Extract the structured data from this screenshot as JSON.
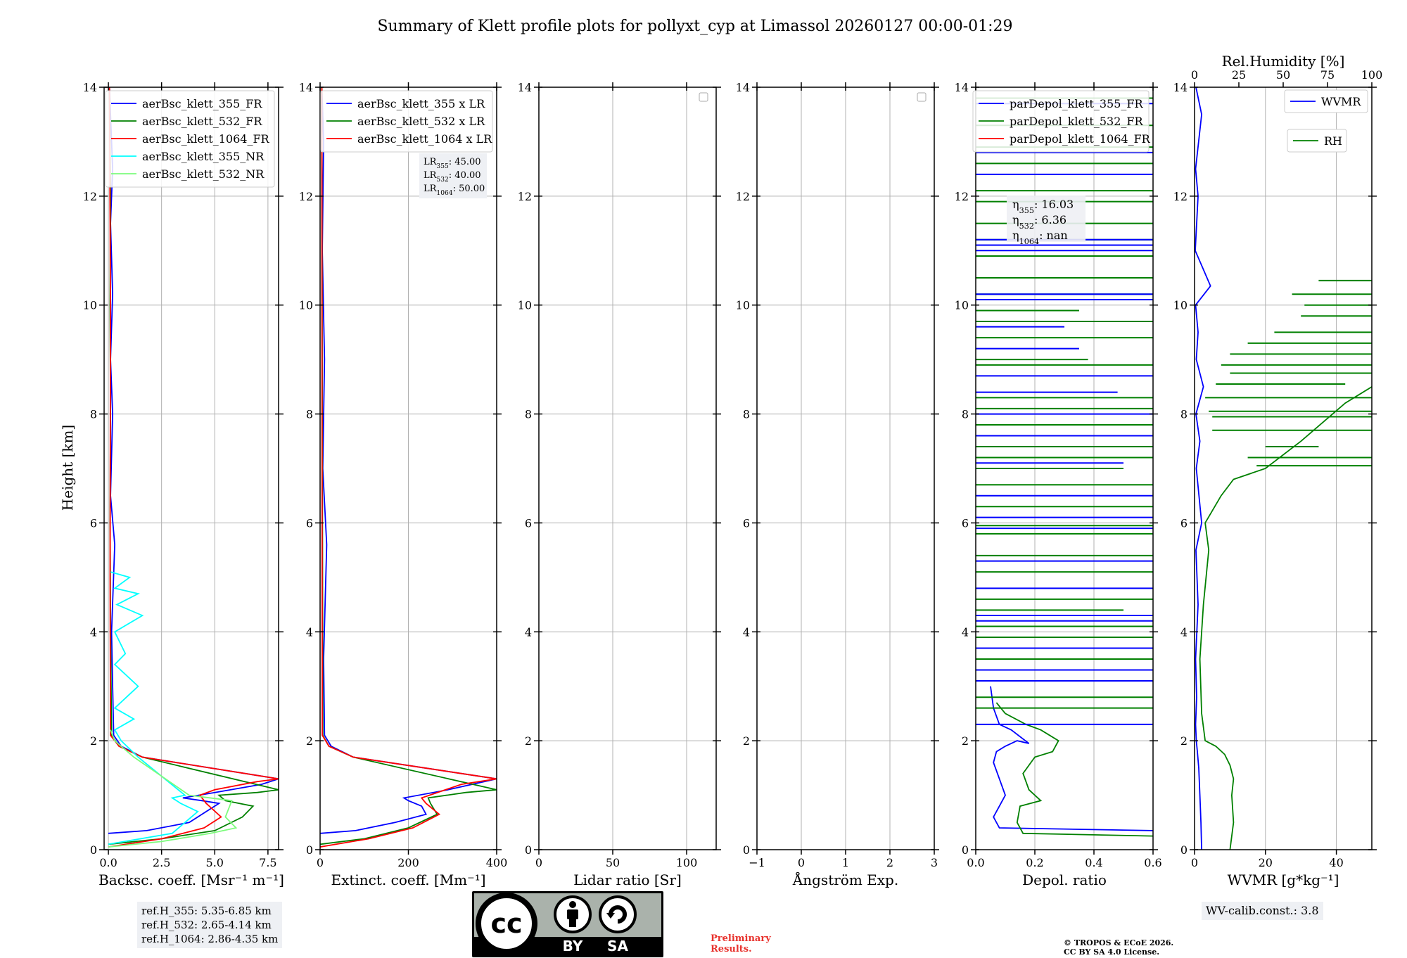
{
  "title": "Summary of Klett profile plots for pollyxt_cyp at Limassol 20260127 00:00-01:29",
  "height_label": "Height [km]",
  "colors": {
    "blue": "#0000ff",
    "green": "#008000",
    "red": "#ff0000",
    "cyan": "#00ffff",
    "light_green": "#7cfc7c",
    "grid": "#b0b0b0"
  },
  "chart_data": [
    {
      "id": "backscatter",
      "type": "line",
      "xlabel": "Backsc. coeff. [Msr⁻¹ m⁻¹]",
      "ylabel": "Height [km]",
      "xlim": [
        -0.2,
        8.0
      ],
      "ylim": [
        0,
        14
      ],
      "xticks": [
        0.0,
        2.5,
        5.0,
        7.5
      ],
      "xtick_labels": [
        "0.0",
        "2.5",
        "5.0",
        "7.5"
      ],
      "yticks": [
        0,
        2,
        4,
        6,
        8,
        10,
        12,
        14
      ],
      "ytick_labels": [
        "0",
        "2",
        "4",
        "6",
        "8",
        "10",
        "12",
        "14"
      ],
      "legend": [
        "aerBsc_klett_355_FR",
        "aerBsc_klett_532_FR",
        "aerBsc_klett_1064_FR",
        "aerBsc_klett_355_NR",
        "aerBsc_klett_532_NR"
      ],
      "legend_colors": [
        "#0000ff",
        "#008000",
        "#ff0000",
        "#00ffff",
        "#7cfc7c"
      ],
      "legend_position": "top-right",
      "series": [
        {
          "name": "aerBsc_klett_355_FR",
          "color": "#0000ff",
          "x": [
            0.0,
            1.8,
            3.8,
            4.6,
            5.2,
            4.4,
            3.5,
            5.0,
            7.2,
            8.0,
            1.6,
            0.6,
            0.25,
            0.2,
            0.15,
            0.3,
            0.1,
            0.2,
            0.1,
            0.2,
            0.1,
            0.2,
            0.1,
            0.05
          ],
          "y": [
            0.3,
            0.35,
            0.5,
            0.7,
            0.85,
            0.9,
            0.95,
            1.05,
            1.2,
            1.3,
            1.7,
            1.9,
            2.1,
            3.0,
            4.0,
            5.6,
            6.5,
            8.0,
            9.0,
            10.2,
            11.5,
            12.5,
            13.5,
            14.0
          ]
        },
        {
          "name": "aerBsc_klett_532_FR",
          "color": "#008000",
          "x": [
            0.0,
            2.5,
            5.0,
            6.3,
            6.8,
            5.5,
            5.2,
            7.0,
            8.0,
            1.6,
            0.5,
            0.15,
            0.1,
            0.08,
            0.1,
            0.08,
            0.1,
            0.05
          ],
          "y": [
            0.1,
            0.2,
            0.35,
            0.6,
            0.8,
            0.9,
            1.0,
            1.05,
            1.1,
            1.7,
            1.9,
            2.1,
            4.0,
            6.0,
            8.0,
            10.0,
            12.0,
            14.0
          ]
        },
        {
          "name": "aerBsc_klett_1064_FR",
          "color": "#ff0000",
          "x": [
            0.0,
            2.5,
            4.5,
            5.3,
            4.6,
            4.3,
            5.0,
            7.0,
            8.0,
            1.6,
            0.5,
            0.1,
            0.08,
            0.1,
            0.05
          ],
          "y": [
            0.05,
            0.2,
            0.4,
            0.6,
            0.85,
            1.0,
            1.1,
            1.25,
            1.3,
            1.7,
            1.9,
            2.1,
            5.0,
            10.0,
            14.0
          ]
        },
        {
          "name": "aerBsc_klett_355_NR",
          "color": "#00ffff",
          "x": [
            0.0,
            3.0,
            3.6,
            4.2,
            3.4,
            3.0,
            3.6,
            1.4,
            0.6,
            0.3,
            1.2,
            0.3,
            1.4,
            0.3,
            0.8,
            0.3,
            1.6,
            0.4,
            1.4,
            0.3,
            1.0,
            0.1
          ],
          "y": [
            0.1,
            0.3,
            0.5,
            0.7,
            0.85,
            0.95,
            1.0,
            1.7,
            2.0,
            2.2,
            2.4,
            2.6,
            3.0,
            3.4,
            3.6,
            4.0,
            4.3,
            4.5,
            4.7,
            4.8,
            5.0,
            5.1
          ]
        },
        {
          "name": "aerBsc_klett_532_NR",
          "color": "#7cfc7c",
          "x": [
            0.0,
            2.5,
            4.8,
            6.0,
            5.5,
            5.8,
            3.8,
            1.2,
            0.3,
            0.1
          ],
          "y": [
            0.05,
            0.15,
            0.3,
            0.4,
            0.6,
            0.9,
            1.0,
            1.7,
            2.0,
            2.2
          ]
        }
      ]
    },
    {
      "id": "extinction",
      "type": "line",
      "xlabel": "Extinct. coeff. [Mm⁻¹]",
      "ylabel": "",
      "xlim": [
        0,
        400
      ],
      "ylim": [
        0,
        14
      ],
      "xticks": [
        0,
        200,
        400
      ],
      "xtick_labels": [
        "0",
        "200",
        "400"
      ],
      "yticks": [
        0,
        2,
        4,
        6,
        8,
        10,
        12,
        14
      ],
      "ytick_labels": [
        "0",
        "2",
        "4",
        "6",
        "8",
        "10",
        "12",
        "14"
      ],
      "legend": [
        "aerBsc_klett_355 x LR",
        "aerBsc_klett_532 x LR",
        "aerBsc_klett_1064 x LR"
      ],
      "legend_colors": [
        "#0000ff",
        "#008000",
        "#ff0000"
      ],
      "legend_position": "top-right",
      "annotation": {
        "lr355_label": "LR",
        "lr355_sub": "355",
        "lr355_value": ": 45.00",
        "lr532_label": "LR",
        "lr532_sub": "532",
        "lr532_value": ": 40.00",
        "lr1064_label": "LR",
        "lr1064_sub": "1064",
        "lr1064_value": ": 50.00"
      },
      "series": [
        {
          "name": "aerBsc_klett_355 x LR",
          "color": "#0000ff",
          "x": [
            0,
            80,
            170,
            240,
            230,
            200,
            190,
            290,
            400,
            75,
            25,
            10,
            8,
            15,
            6,
            10,
            5,
            8,
            4
          ],
          "y": [
            0.3,
            0.35,
            0.5,
            0.65,
            0.8,
            0.9,
            0.95,
            1.1,
            1.3,
            1.7,
            1.9,
            2.1,
            3.5,
            5.6,
            7.0,
            9.0,
            11.0,
            13.0,
            14.0
          ]
        },
        {
          "name": "aerBsc_klett_532 x LR",
          "color": "#008000",
          "x": [
            0,
            100,
            200,
            265,
            250,
            245,
            330,
            400,
            75,
            20,
            6,
            5,
            4
          ],
          "y": [
            0.1,
            0.2,
            0.4,
            0.65,
            0.85,
            0.95,
            1.05,
            1.1,
            1.7,
            1.9,
            2.1,
            8.0,
            14.0
          ]
        },
        {
          "name": "aerBsc_klett_1064 x LR",
          "color": "#ff0000",
          "x": [
            0,
            110,
            210,
            270,
            240,
            230,
            320,
            400,
            75,
            20,
            5,
            4
          ],
          "y": [
            0.05,
            0.2,
            0.4,
            0.65,
            0.85,
            0.95,
            1.2,
            1.3,
            1.7,
            1.9,
            2.1,
            14.0
          ]
        }
      ]
    },
    {
      "id": "lidar_ratio",
      "type": "line",
      "xlabel": "Lidar ratio [Sr]",
      "ylabel": "",
      "xlim": [
        0,
        120
      ],
      "ylim": [
        0,
        14
      ],
      "xticks": [
        0,
        50,
        100
      ],
      "xtick_labels": [
        "0",
        "50",
        "100"
      ],
      "yticks": [
        0,
        2,
        4,
        6,
        8,
        10,
        12,
        14
      ],
      "ytick_labels": [
        "0",
        "2",
        "4",
        "6",
        "8",
        "10",
        "12",
        "14"
      ],
      "legend": [],
      "legend_position": "top-right",
      "series": []
    },
    {
      "id": "angstrom",
      "type": "line",
      "xlabel": "Ångström Exp.",
      "ylabel": "",
      "xlim": [
        -1,
        3
      ],
      "ylim": [
        0,
        14
      ],
      "xticks": [
        -1,
        0,
        1,
        2,
        3
      ],
      "xtick_labels": [
        "−1",
        "0",
        "1",
        "2",
        "3"
      ],
      "yticks": [
        0,
        2,
        4,
        6,
        8,
        10,
        12,
        14
      ],
      "ytick_labels": [
        "0",
        "2",
        "4",
        "6",
        "8",
        "10",
        "12",
        "14"
      ],
      "legend": [],
      "legend_position": "top-right",
      "series": []
    },
    {
      "id": "depolarization",
      "type": "line",
      "xlabel": "Depol. ratio",
      "ylabel": "",
      "xlim": [
        0,
        0.6
      ],
      "ylim": [
        0,
        14
      ],
      "xticks": [
        0.0,
        0.2,
        0.4,
        0.6
      ],
      "xtick_labels": [
        "0.0",
        "0.2",
        "0.4",
        "0.6"
      ],
      "yticks": [
        0,
        2,
        4,
        6,
        8,
        10,
        12,
        14
      ],
      "ytick_labels": [
        "0",
        "2",
        "4",
        "6",
        "8",
        "10",
        "12",
        "14"
      ],
      "legend": [
        "parDepol_klett_355_FR",
        "parDepol_klett_532_FR",
        "parDepol_klett_1064_FR"
      ],
      "legend_colors": [
        "#0000ff",
        "#008000",
        "#ff0000"
      ],
      "legend_position": "top-right",
      "annotation": {
        "eta355_label": "η",
        "eta355_sub": "355",
        "eta355_value": ": 16.03",
        "eta532_label": "η",
        "eta532_sub": "532",
        "eta532_value": ": 6.36",
        "eta1064_label": "η",
        "eta1064_sub": "1064",
        "eta1064_value": ": nan"
      },
      "series": [
        {
          "name": "parDepol_klett_355_FR",
          "color": "#0000ff",
          "x": [
            0.6,
            0.08,
            0.06,
            0.08,
            0.1,
            0.08,
            0.06,
            0.07,
            0.1,
            0.14,
            0.18,
            0.12,
            0.08,
            0.06,
            0.05
          ],
          "y": [
            0.35,
            0.4,
            0.6,
            0.8,
            1.0,
            1.3,
            1.6,
            1.8,
            1.9,
            2.0,
            1.95,
            2.2,
            2.3,
            2.6,
            3.0
          ]
        },
        {
          "name": "parDepol_klett_532_FR",
          "color": "#008000",
          "x": [
            0.6,
            0.16,
            0.14,
            0.15,
            0.22,
            0.18,
            0.16,
            0.2,
            0.26,
            0.28,
            0.22,
            0.17,
            0.1,
            0.07
          ],
          "y": [
            0.25,
            0.3,
            0.5,
            0.8,
            0.9,
            1.1,
            1.4,
            1.7,
            1.8,
            2.0,
            2.2,
            2.3,
            2.5,
            2.7
          ]
        }
      ],
      "spikes": {
        "355_heights": [
          2.3,
          3.1,
          3.3,
          3.7,
          4.2,
          4.3,
          4.8,
          5.3,
          5.9,
          6.1,
          6.5,
          7.1,
          7.6,
          8.0,
          8.4,
          8.7,
          9.2,
          9.6,
          10.1,
          10.2,
          11.0,
          11.1,
          11.2,
          12.4,
          12.8,
          13.7
        ],
        "355_values": [
          0.6,
          0.6,
          0.6,
          0.6,
          0.6,
          0.6,
          0.6,
          0.6,
          0.6,
          0.6,
          0.6,
          0.5,
          0.6,
          0.6,
          0.48,
          0.6,
          0.35,
          0.3,
          0.6,
          0.6,
          0.6,
          0.6,
          0.6,
          0.6,
          0.6,
          0.6
        ],
        "532_heights": [
          2.6,
          2.8,
          3.5,
          3.9,
          4.1,
          4.4,
          4.6,
          5.1,
          5.4,
          5.8,
          5.95,
          6.3,
          6.7,
          7.0,
          7.2,
          7.4,
          7.8,
          8.1,
          8.3,
          8.9,
          9.0,
          9.4,
          9.7,
          9.9,
          10.2,
          10.5,
          10.9,
          11.2,
          11.5,
          11.9,
          12.1,
          12.6,
          12.9,
          13.3,
          13.8
        ],
        "532_values": [
          0.6,
          0.6,
          0.6,
          0.6,
          0.6,
          0.5,
          0.6,
          0.6,
          0.6,
          0.6,
          0.6,
          0.6,
          0.6,
          0.5,
          0.6,
          0.6,
          0.6,
          0.6,
          0.6,
          0.6,
          0.38,
          0.6,
          0.6,
          0.35,
          0.6,
          0.6,
          0.6,
          0.6,
          0.6,
          0.6,
          0.6,
          0.6,
          0.6,
          0.6,
          0.6
        ]
      }
    },
    {
      "id": "wvmr",
      "type": "line",
      "xlabel": "WVMR [g*kg⁻¹]",
      "ylabel": "",
      "xlim": [
        0,
        50
      ],
      "ylim": [
        0,
        14
      ],
      "xticks": [
        0,
        20,
        40
      ],
      "xtick_labels": [
        "0",
        "20",
        "40"
      ],
      "yticks": [
        0,
        2,
        4,
        6,
        8,
        10,
        12,
        14
      ],
      "ytick_labels": [
        "0",
        "2",
        "4",
        "6",
        "8",
        "10",
        "12",
        "14"
      ],
      "top_axis": {
        "label": "Rel.Humidity [%]",
        "lim": [
          0,
          100
        ],
        "ticks": [
          0,
          25,
          50,
          75,
          100
        ],
        "tick_labels": [
          "0",
          "25",
          "50",
          "75",
          "100"
        ]
      },
      "legend": [
        "WVMR",
        "RH"
      ],
      "legend_colors": [
        "#0000ff",
        "#008000"
      ],
      "legend_position": "top-right",
      "series": [
        {
          "name": "WVMR",
          "color": "#0000ff",
          "x": [
            2.0,
            1.8,
            1.5,
            1.2,
            0.8,
            0.5,
            0.3,
            0.6,
            0.3,
            1.0,
            0.4,
            2.0,
            0.5,
            1.5,
            0.4,
            2.5,
            0.5,
            1.0,
            0.3,
            4.5,
            0.2,
            1.0,
            0.3,
            2.0,
            0.4
          ],
          "y": [
            0.0,
            0.5,
            1.0,
            1.5,
            1.8,
            2.0,
            2.3,
            2.8,
            3.5,
            4.5,
            5.5,
            6.0,
            7.0,
            7.5,
            8.0,
            8.5,
            9.0,
            9.5,
            10.0,
            10.35,
            11.0,
            12.0,
            12.5,
            13.5,
            14.0
          ]
        },
        {
          "name": "RH",
          "color": "#008000",
          "x": [
            20,
            22,
            21,
            22,
            20,
            17,
            12,
            6,
            4,
            3,
            5,
            8,
            6,
            15,
            22,
            40,
            60,
            85,
            100
          ],
          "y": [
            0.0,
            0.5,
            1.0,
            1.3,
            1.55,
            1.75,
            1.9,
            2.0,
            2.5,
            3.5,
            4.5,
            5.5,
            6.0,
            6.5,
            6.8,
            7.0,
            7.5,
            8.2,
            8.5
          ]
        }
      ],
      "rh_spikes": {
        "heights": [
          7.05,
          7.2,
          7.4,
          7.7,
          7.95,
          8.05,
          8.3,
          8.55,
          8.75,
          8.9,
          9.1,
          9.3,
          9.5,
          9.8,
          10.0,
          10.2,
          10.45
        ],
        "values": [
          100,
          100,
          70,
          100,
          100,
          100,
          100,
          85,
          100,
          100,
          100,
          100,
          100,
          100,
          100,
          100,
          100
        ],
        "starts": [
          35,
          30,
          40,
          10,
          10,
          8,
          6,
          12,
          20,
          15,
          20,
          30,
          45,
          60,
          62,
          55,
          70
        ]
      }
    }
  ],
  "ref_heights": {
    "line1": "ref.H_355: 5.35-6.85 km",
    "line2": "ref.H_532: 2.65-4.14 km",
    "line3": "ref.H_1064: 2.86-4.35 km"
  },
  "wv_calib": "WV-calib.const.: 3.8",
  "preliminary": {
    "line1": "Preliminary",
    "line2": "Results."
  },
  "copyright": {
    "line1": "© TROPOS & ECoE 2026.",
    "line2": "CC BY SA 4.0 License."
  },
  "license_logo": {
    "cc": "cc",
    "by": "BY",
    "sa": "SA"
  }
}
